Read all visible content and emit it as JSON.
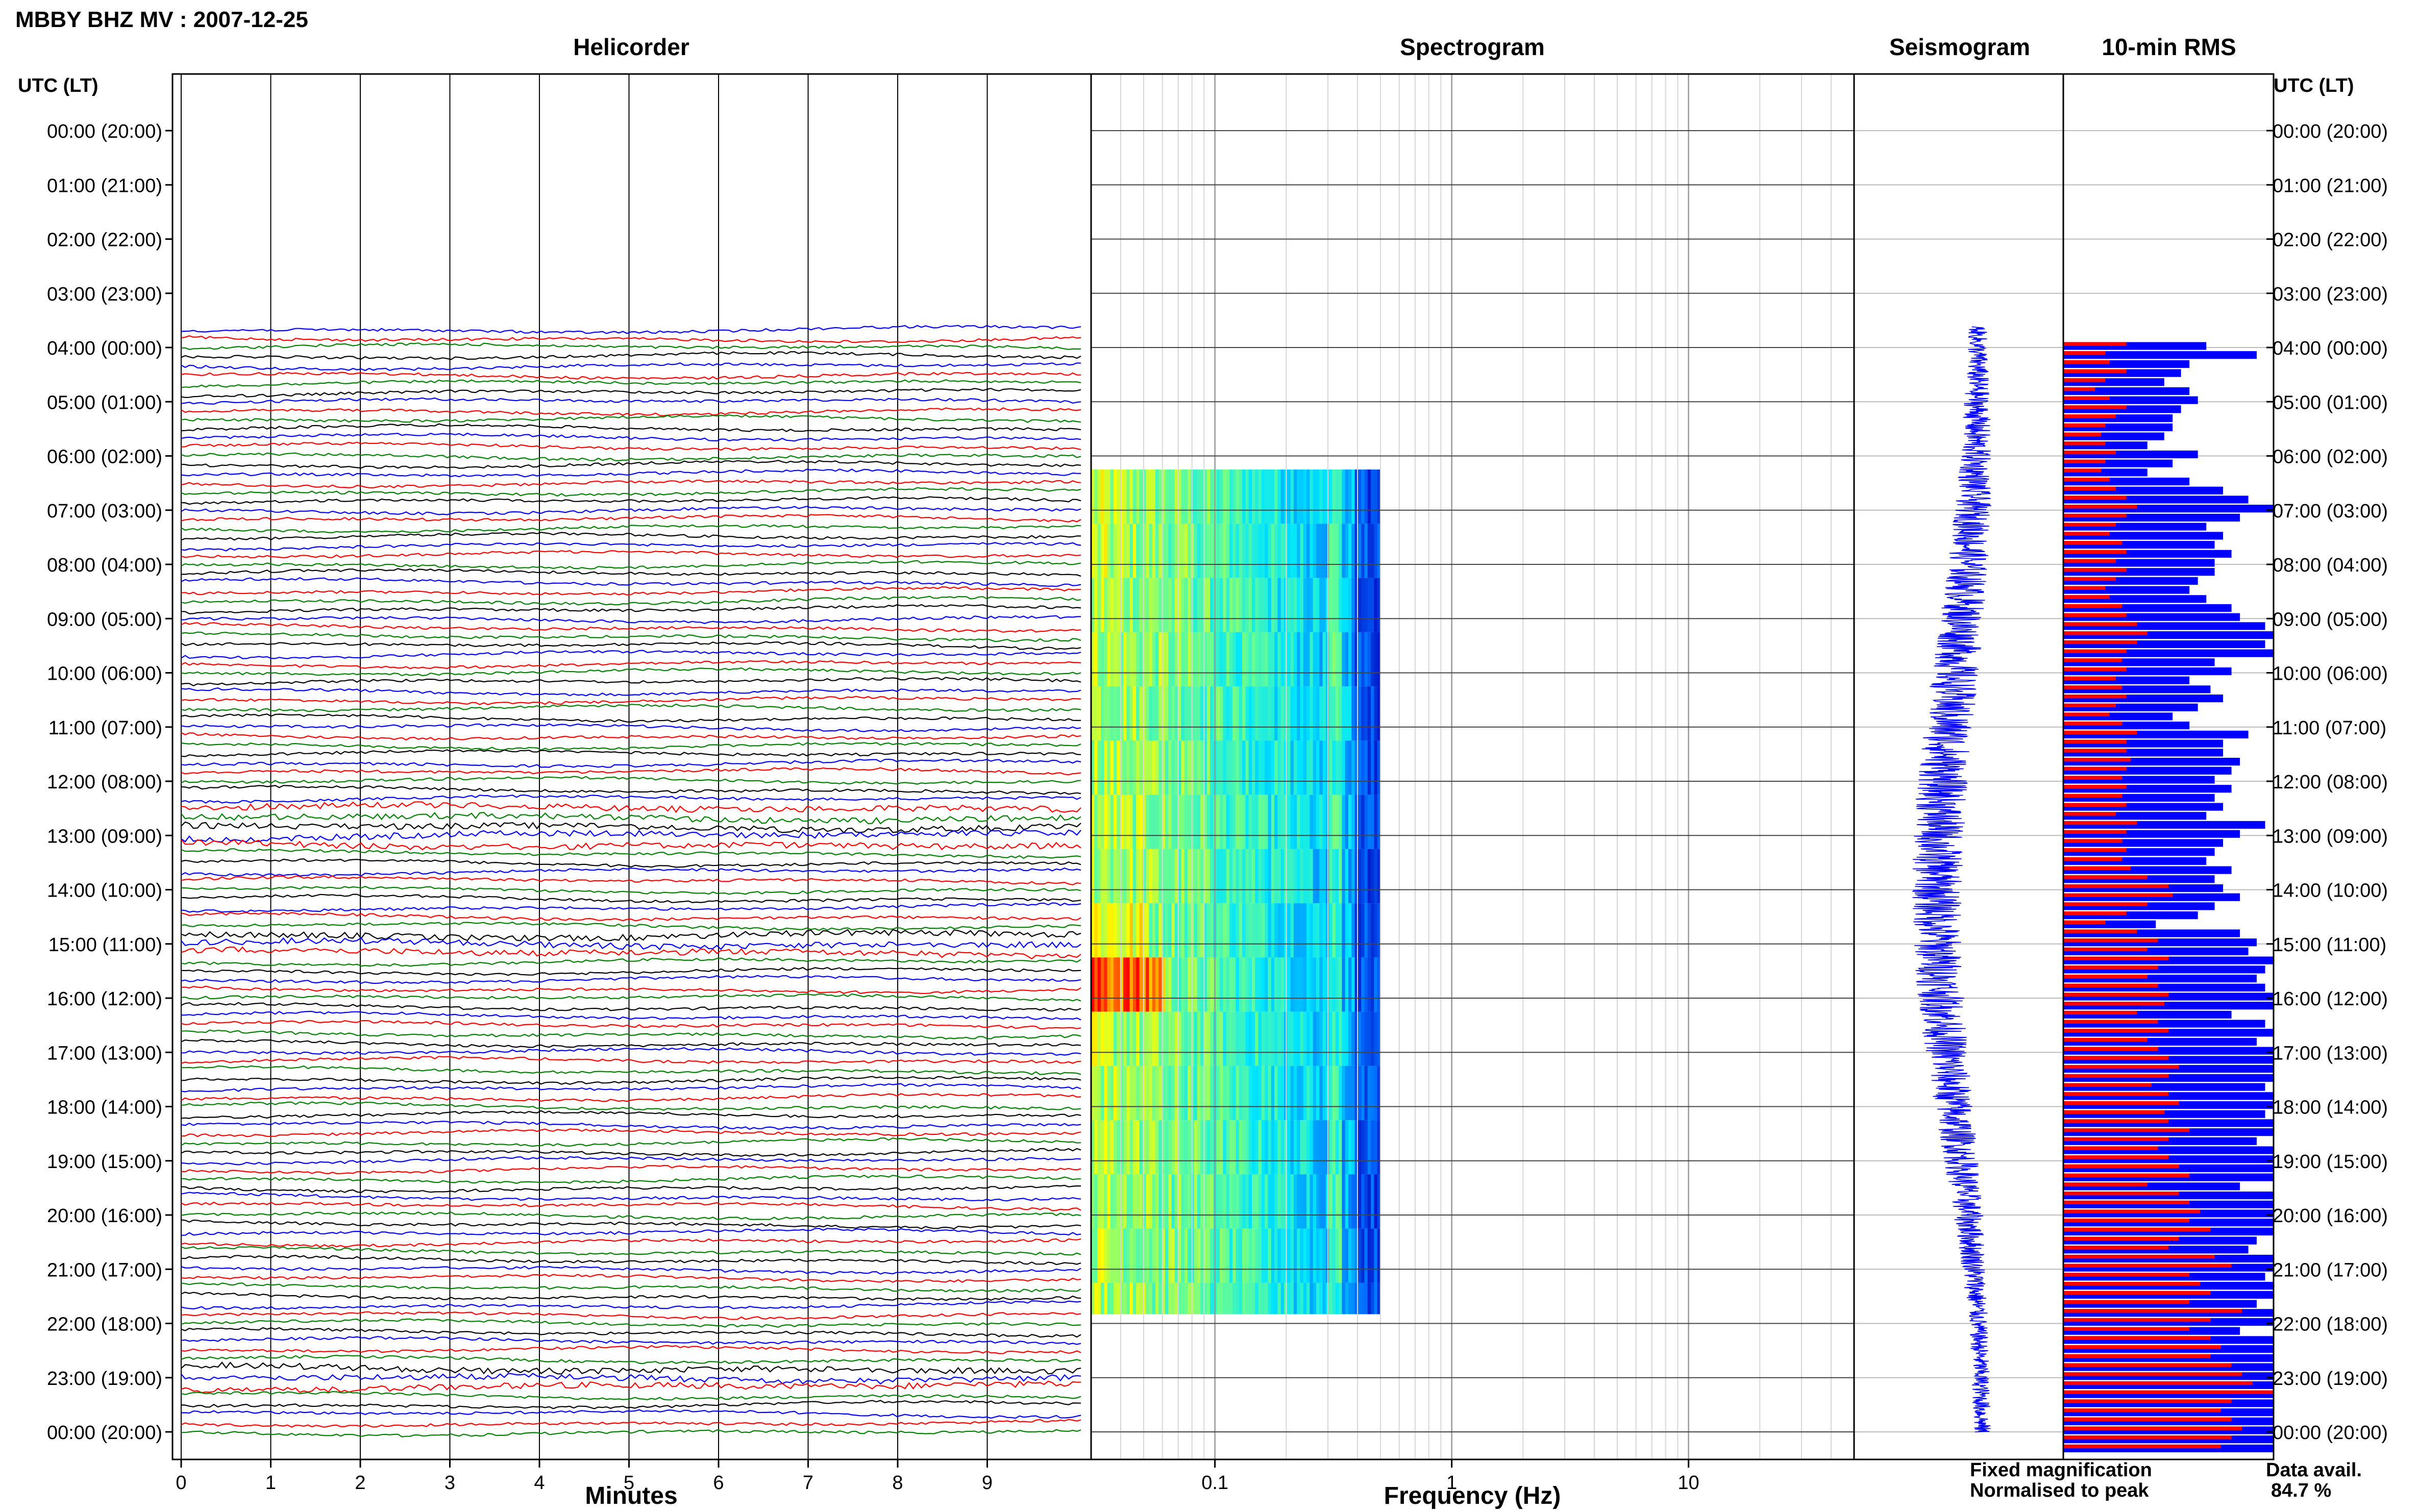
{
  "page_title": "MBBY BHZ MV : 2007-12-25",
  "panels": {
    "helicorder": "Helicorder",
    "spectrogram": "Spectrogram",
    "seismogram": "Seismogram",
    "rms": "10-min RMS"
  },
  "axis_header_left": "UTC (LT)",
  "axis_header_right": "UTC (LT)",
  "time_labels": [
    "00:00 (20:00)",
    "01:00 (21:00)",
    "02:00 (22:00)",
    "03:00 (23:00)",
    "04:00 (00:00)",
    "05:00 (01:00)",
    "06:00 (02:00)",
    "07:00 (03:00)",
    "08:00 (04:00)",
    "09:00 (05:00)",
    "10:00 (06:00)",
    "11:00 (07:00)",
    "12:00 (08:00)",
    "13:00 (09:00)",
    "14:00 (10:00)",
    "15:00 (11:00)",
    "16:00 (12:00)",
    "17:00 (13:00)",
    "18:00 (14:00)",
    "19:00 (15:00)",
    "20:00 (16:00)",
    "21:00 (17:00)",
    "22:00 (18:00)",
    "23:00 (19:00)",
    "00:00 (20:00)"
  ],
  "minutes_ticks": [
    "0",
    "1",
    "2",
    "3",
    "4",
    "5",
    "6",
    "7",
    "8",
    "9"
  ],
  "minutes_label": "Minutes",
  "frequency_ticks": [
    "0.1",
    "1",
    "10"
  ],
  "frequency_label": "Frequency (Hz)",
  "legend": {
    "fixed": "Fixed magnification",
    "normalised": "Normalised to peak",
    "fixed_color": "#0000ff",
    "normalised_color": "#ff0000"
  },
  "data_avail": {
    "label": "Data avail.",
    "value": "84.7 %"
  },
  "chart_data": {
    "type": "helicorder",
    "station": "MBBY",
    "channel": "BHZ",
    "network": "MV",
    "date": "2007-12-25",
    "time_axis": {
      "start_utc": "00:00",
      "end_utc": "24:00",
      "lt_offset_hours": -4
    },
    "data_start_utc": "03:40",
    "data_end_utc": "24:00",
    "spectrogram": {
      "start_utc": "06:15",
      "end_utc": "21:50",
      "freq_range_hz": [
        0.03,
        0.5
      ],
      "xscale": "log",
      "xlim": [
        0.03,
        50
      ]
    },
    "helicorder": {
      "minutes_per_line": 10,
      "xlim": [
        0,
        10
      ],
      "trace_colors": [
        "#0000ff",
        "#ff0000",
        "#008000",
        "#000000"
      ]
    },
    "rms_10min": {
      "start_utc": "04:00",
      "interval_minutes": 10,
      "fixed_fraction": [
        0.68,
        0.92,
        0.6,
        0.56,
        0.48,
        0.6,
        0.64,
        0.56,
        0.52,
        0.52,
        0.48,
        0.4,
        0.64,
        0.52,
        0.4,
        0.6,
        0.76,
        0.88,
        1.0,
        0.84,
        0.68,
        0.76,
        0.72,
        0.8,
        0.72,
        0.72,
        0.64,
        0.6,
        0.68,
        0.8,
        0.84,
        0.96,
        1.0,
        0.96,
        1.0,
        0.72,
        0.8,
        0.6,
        0.7,
        0.76,
        0.64,
        0.52,
        0.6,
        0.88,
        0.76,
        0.76,
        0.84,
        0.8,
        0.72,
        0.8,
        0.72,
        0.76,
        0.68,
        0.96,
        0.84,
        0.76,
        0.72,
        0.68,
        0.8,
        0.72,
        0.76,
        0.84,
        0.72,
        0.64,
        0.44,
        0.84,
        0.92,
        0.88,
        1.0,
        0.96,
        0.92,
        0.96,
        1.0,
        1.0,
        0.8,
        0.96,
        1.0,
        0.92,
        1.0,
        1.0,
        1.0,
        1.0,
        0.96,
        1.0,
        1.0,
        0.96,
        1.0,
        1.0,
        0.92,
        1.0,
        1.0,
        1.0,
        1.0,
        0.84,
        1.0,
        1.0,
        1.0,
        1.0,
        1.0,
        0.92,
        0.88,
        1.0,
        1.0,
        0.96,
        1.0,
        1.0,
        0.92,
        1.0,
        1.0,
        0.84,
        1.0,
        1.0,
        1.0,
        1.0,
        1.0,
        1.0,
        1.0,
        1.0,
        1.0,
        1.0,
        1.0,
        1.0,
        1.0
      ],
      "normalised_fraction": [
        0.3,
        0.2,
        0.22,
        0.3,
        0.2,
        0.15,
        0.22,
        0.3,
        0.25,
        0.2,
        0.18,
        0.2,
        0.25,
        0.2,
        0.18,
        0.22,
        0.25,
        0.3,
        0.35,
        0.3,
        0.25,
        0.22,
        0.28,
        0.3,
        0.25,
        0.3,
        0.25,
        0.2,
        0.22,
        0.28,
        0.3,
        0.35,
        0.4,
        0.35,
        0.3,
        0.28,
        0.3,
        0.25,
        0.28,
        0.3,
        0.25,
        0.22,
        0.28,
        0.35,
        0.3,
        0.3,
        0.32,
        0.3,
        0.28,
        0.3,
        0.28,
        0.3,
        0.25,
        0.35,
        0.3,
        0.28,
        0.3,
        0.28,
        0.32,
        0.4,
        0.5,
        0.52,
        0.4,
        0.3,
        0.2,
        0.35,
        0.45,
        0.4,
        0.5,
        0.45,
        0.4,
        0.45,
        0.5,
        0.48,
        0.35,
        0.45,
        0.5,
        0.4,
        0.45,
        0.5,
        0.55,
        0.5,
        0.42,
        0.5,
        0.55,
        0.48,
        0.5,
        0.6,
        0.5,
        0.45,
        0.5,
        0.55,
        0.6,
        0.4,
        0.55,
        0.6,
        0.65,
        0.6,
        0.7,
        0.55,
        0.5,
        0.72,
        0.8,
        0.6,
        0.65,
        0.7,
        0.6,
        0.85,
        0.7,
        0.6,
        0.7,
        0.75,
        0.7,
        0.8,
        0.85,
        0.9,
        1.0,
        0.8,
        0.75,
        0.8,
        0.85,
        0.8,
        0.75
      ]
    }
  }
}
